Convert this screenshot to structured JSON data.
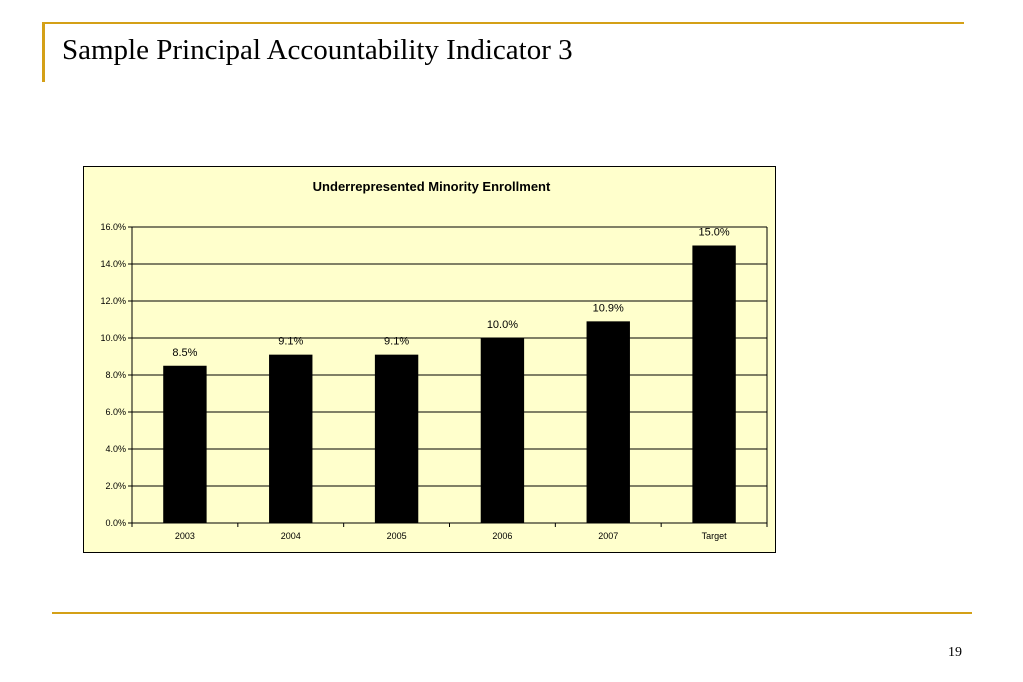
{
  "slide": {
    "title": "Sample Principal Accountability Indicator 3",
    "page_number": "19"
  },
  "colors": {
    "accent_rule": "#d4a017",
    "chart_background": "#ffffcc",
    "bar_fill": "#000000"
  },
  "chart_data": {
    "type": "bar",
    "title": "Underrepresented Minority Enrollment",
    "xlabel": "",
    "ylabel": "",
    "categories": [
      "2003",
      "2004",
      "2005",
      "2006",
      "2007",
      "Target"
    ],
    "values": [
      8.5,
      9.1,
      9.1,
      10.0,
      10.9,
      15.0
    ],
    "data_labels": [
      "8.5%",
      "9.1%",
      "9.1%",
      "10.0%",
      "10.9%",
      "15.0%"
    ],
    "ylim": [
      0,
      16
    ],
    "y_ticks": [
      0,
      2,
      4,
      6,
      8,
      10,
      12,
      14,
      16
    ],
    "y_tick_labels": [
      "0.0%",
      "2.0%",
      "4.0%",
      "6.0%",
      "8.0%",
      "10.0%",
      "12.0%",
      "14.0%",
      "16.0%"
    ],
    "grid": true,
    "legend": "none"
  }
}
